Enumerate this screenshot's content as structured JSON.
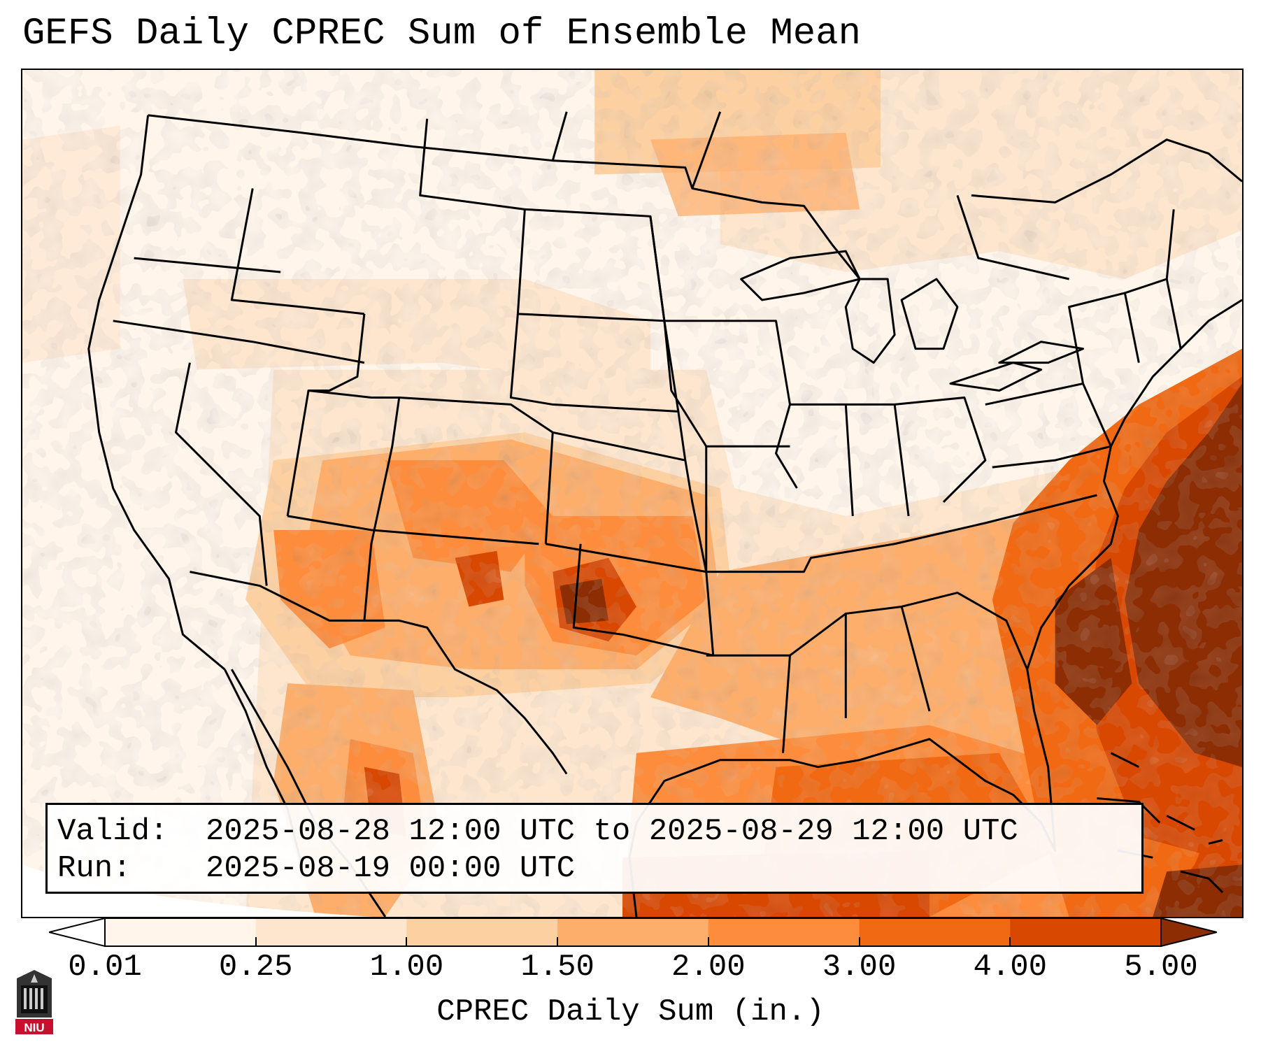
{
  "title": "GEFS Daily CPREC Sum of Ensemble Mean",
  "info": {
    "valid_label": "Valid:",
    "valid_value": "2025-08-28 12:00 UTC to 2025-08-29 12:00 UTC",
    "run_label": "Run:",
    "run_value": "2025-08-19 00:00 UTC"
  },
  "colorbar": {
    "title": "CPREC Daily Sum (in.)",
    "ticks": [
      "0.01",
      "0.25",
      "1.00",
      "1.50",
      "2.00",
      "3.00",
      "4.00",
      "5.00"
    ],
    "colors": [
      "#ffffff",
      "#fff5eb",
      "#fee6ce",
      "#fdd0a2",
      "#fdae6b",
      "#fd8d3c",
      "#f16913",
      "#d94801",
      "#8c2d04"
    ]
  },
  "logo": {
    "text": "NIU"
  },
  "map": {
    "region": "Continental United States",
    "field": "GEFS ensemble mean convective precipitation daily sum"
  }
}
